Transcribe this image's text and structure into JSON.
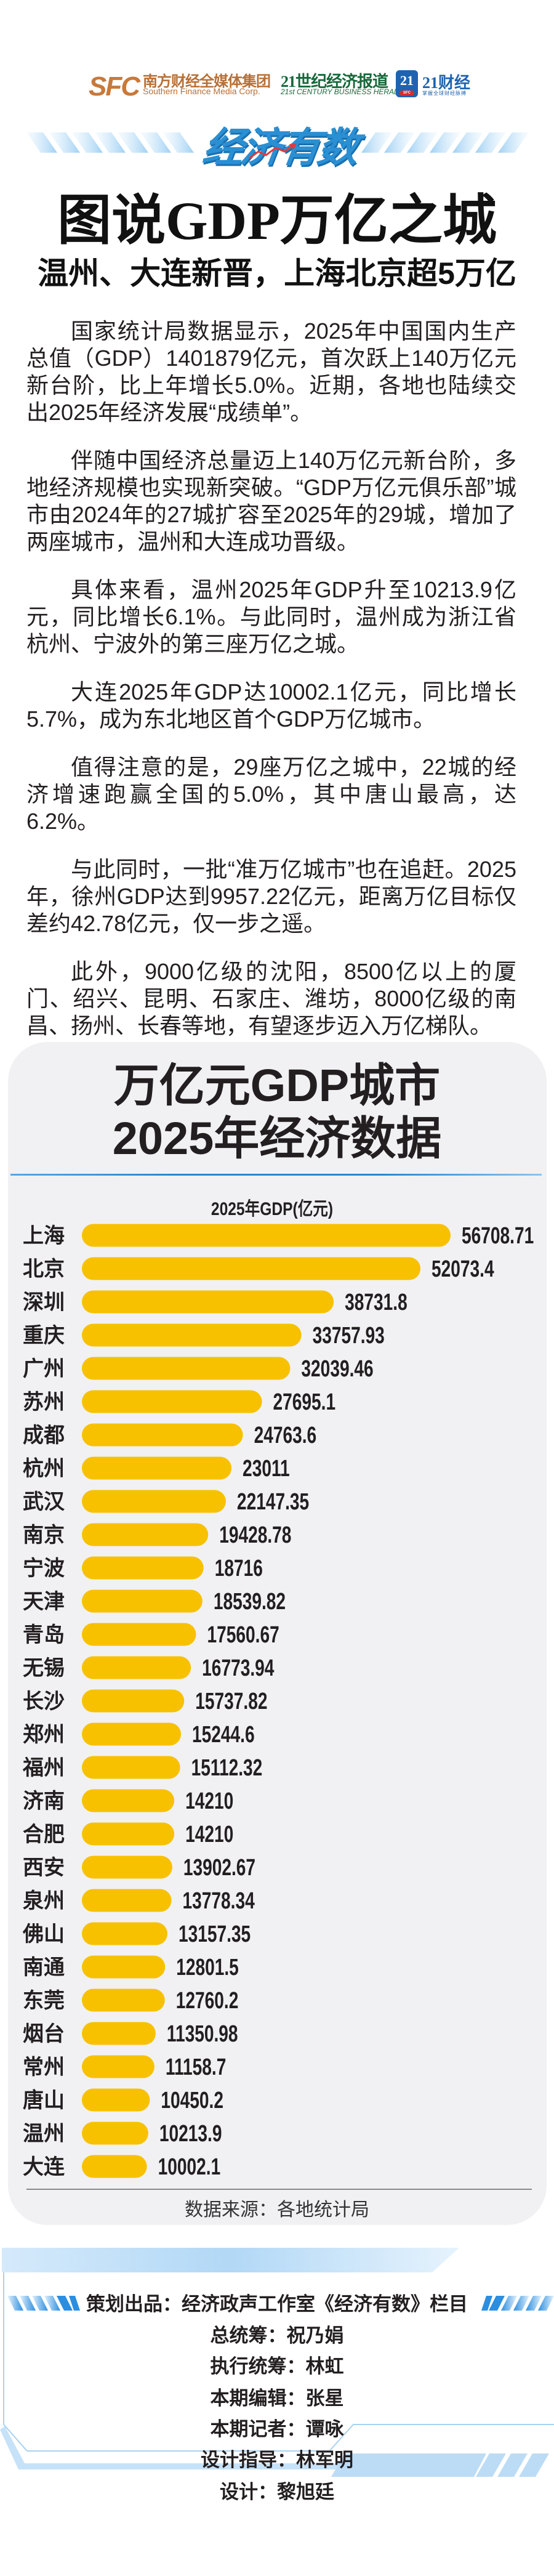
{
  "header": {
    "logos": {
      "sfc_mark": "SFC",
      "sfc_cn": "南方财经全媒体集团",
      "sfc_en": "Southern Finance Media Corp.",
      "cbh_cn": "21世纪经济报道",
      "cbh_en": "21st CENTURY BUSINESS HERALD",
      "c21_badge": "21",
      "c21_badge_sub": "SFC",
      "c21_cn": "21财经",
      "c21_sub": "掌握全球财经脉搏"
    },
    "column_brand": "经济有数",
    "title": "图说GDP万亿之城",
    "subtitle": "温州、大连新晋，上海北京超5万亿"
  },
  "article": {
    "paragraphs": [
      "国家统计局数据显示，2025年中国国内生产总值（GDP）1401879亿元，首次跃上140万亿元新台阶，比上年增长5.0%。近期，各地也陆续交出2025年经济发展“成绩单”。",
      "伴随中国经济总量迈上140万亿元新台阶，多地经济规模也实现新突破。“GDP万亿元俱乐部”城市由2024年的27城扩容至2025年的29城，增加了两座城市，温州和大连成功晋级。",
      "具体来看，温州2025年GDP升至10213.9亿元，同比增长6.1%。与此同时，温州成为浙江省杭州、宁波外的第三座万亿之城。",
      "大连2025年GDP达10002.1亿元，同比增长5.7%，成为东北地区首个GDP万亿城市。",
      "值得注意的是，29座万亿之城中，22城的经济增速跑赢全国的5.0%，其中唐山最高，达6.2%。",
      "与此同时，一批“准万亿城市”也在追赶。2025年，徐州GDP达到9957.22亿元，距离万亿目标仅差约42.78亿元，仅一步之遥。",
      "此外，9000亿级的沈阳，8500亿以上的厦门、绍兴、昆明、石家庄、潍坊，8000亿级的南昌、扬州、长春等地，有望逐步迈入万亿梯队。"
    ]
  },
  "panel": {
    "title_line1": "万亿元GDP城市",
    "title_line2": "2025年经济数据",
    "source": "数据来源：各地统计局"
  },
  "chart_data": {
    "type": "bar",
    "orientation": "horizontal",
    "title": "2025年GDP(亿元)",
    "categories": [
      "上海",
      "北京",
      "深圳",
      "重庆",
      "广州",
      "苏州",
      "成都",
      "杭州",
      "武汉",
      "南京",
      "宁波",
      "天津",
      "青岛",
      "无锡",
      "长沙",
      "郑州",
      "福州",
      "济南",
      "合肥",
      "西安",
      "泉州",
      "佛山",
      "南通",
      "东莞",
      "烟台",
      "常州",
      "唐山",
      "温州",
      "大连"
    ],
    "values": [
      56708.71,
      52073.4,
      38731.8,
      33757.93,
      32039.46,
      27695.1,
      24763.6,
      23011,
      22147.35,
      19428.78,
      18716,
      18539.82,
      17560.67,
      16773.94,
      15737.82,
      15244.6,
      15112.32,
      14210,
      14210,
      13902.67,
      13778.34,
      13157.35,
      12801.5,
      12760.2,
      11350.98,
      11158.7,
      10450.2,
      10213.9,
      10002.1
    ],
    "value_labels": [
      "56708.71",
      "52073.4",
      "38731.8",
      "33757.93",
      "32039.46",
      "27695.1",
      "24763.6",
      "23011",
      "22147.35",
      "19428.78",
      "18716",
      "18539.82",
      "17560.67",
      "16773.94",
      "15737.82",
      "15244.6",
      "15112.32",
      "14210",
      "14210",
      "13902.67",
      "13778.34",
      "13157.35",
      "12801.5",
      "12760.2",
      "11350.98",
      "11158.7",
      "10450.2",
      "10213.9",
      "10002.1"
    ],
    "bar_color": "#f7c100",
    "grid": false,
    "legend": "none"
  },
  "credits": {
    "producer": "策划出品：经济政声工作室《经济有数》栏目",
    "lines": [
      "总统筹：祝乃娟",
      "执行统筹：林虹",
      "本期编辑：张星",
      "本期记者：谭咏",
      "设计指导：林军明",
      "设计：黎旭廷"
    ]
  },
  "colors": {
    "accent_blue": "#2a8fd3",
    "bar": "#f7c100",
    "panel_bg": "#f1f1f3",
    "text": "#231f20"
  }
}
